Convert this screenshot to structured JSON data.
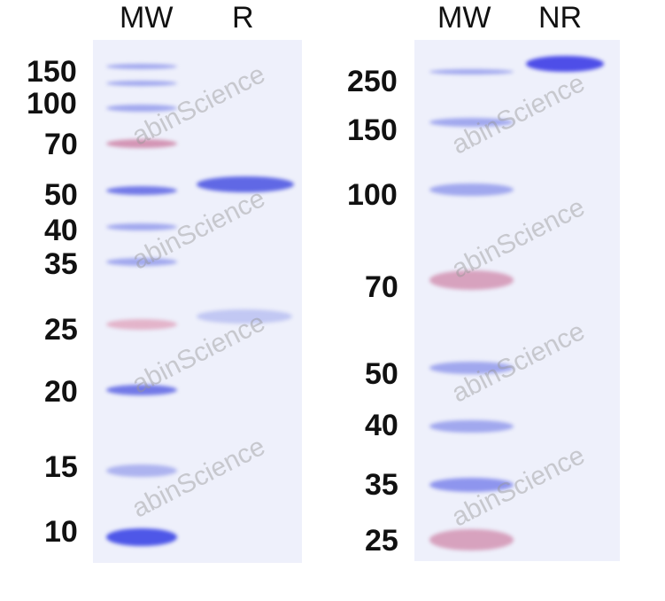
{
  "left_panel": {
    "lanes": [
      "MW",
      "R"
    ],
    "markers": [
      "150",
      "100",
      "70",
      "50",
      "40",
      "35",
      "25",
      "20",
      "15",
      "10"
    ]
  },
  "right_panel": {
    "lanes": [
      "MW",
      "NR"
    ],
    "markers": [
      "250",
      "150",
      "100",
      "70",
      "50",
      "40",
      "35",
      "25"
    ]
  },
  "watermark": "abinScience",
  "colors": {
    "gel": "#eef0fb",
    "band_blue": "#4a52e0",
    "band_pink": "#c9708f"
  }
}
